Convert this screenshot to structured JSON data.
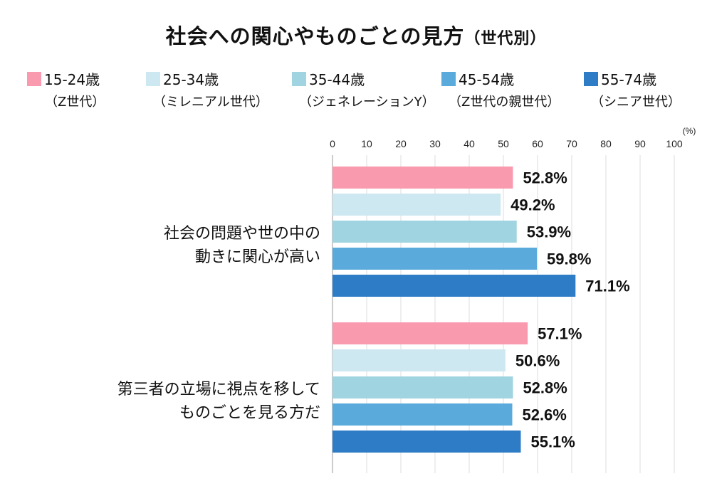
{
  "title": "社会への関心やものごとの見方",
  "subtitle": "（世代別）",
  "chart_data": {
    "type": "bar",
    "orientation": "horizontal",
    "categories": [
      "社会の問題や世の中の動きに関心が高い",
      "第三者の立場に視点を移してものごとを見る方だ"
    ],
    "category_lines": [
      [
        "社会の問題や世の中の",
        "動きに関心が高い"
      ],
      [
        "第三者の立場に視点を移して",
        "ものごとを見る方だ"
      ]
    ],
    "series": [
      {
        "name": "15-24歳",
        "generation": "（Z世代）",
        "color": "#f99aae",
        "values": [
          52.8,
          57.1
        ]
      },
      {
        "name": "25-34歳",
        "generation": "（ミレニアル世代）",
        "color": "#cde8f1",
        "values": [
          49.2,
          50.6
        ]
      },
      {
        "name": "35-44歳",
        "generation": "（ジェネレーションY）",
        "color": "#a0d4e0",
        "values": [
          53.9,
          52.8
        ]
      },
      {
        "name": "45-54歳",
        "generation": "（Z世代の親世代）",
        "color": "#5aaadc",
        "values": [
          59.8,
          52.6
        ]
      },
      {
        "name": "55-74歳",
        "generation": "（シニア世代）",
        "color": "#2e7cc6",
        "values": [
          71.1,
          55.1
        ]
      }
    ],
    "xlim": [
      0,
      100
    ],
    "xticks": [
      "0",
      "10",
      "20",
      "30",
      "40",
      "50",
      "60",
      "70",
      "80",
      "90",
      "100"
    ],
    "unit": "(%)",
    "value_suffix": "%",
    "grid": true,
    "legend_position": "top"
  }
}
